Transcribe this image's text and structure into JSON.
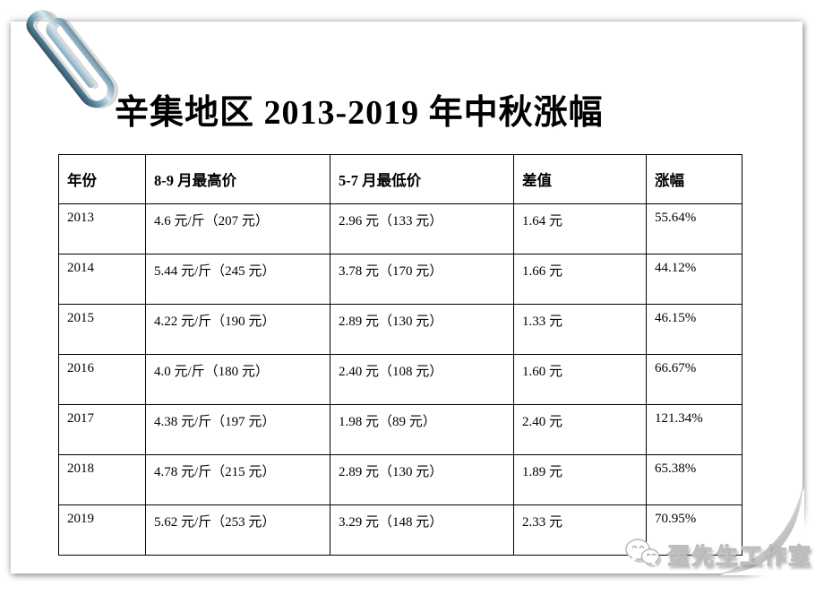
{
  "title": {
    "text": "辛集地区 2013-2019 年中秋涨幅"
  },
  "table": {
    "columns": [
      "年份",
      "8-9 月最高价",
      "5-7 月最低价",
      "差值",
      "涨幅"
    ],
    "rows": [
      [
        "2013",
        "4.6 元/斤（207 元）",
        "2.96 元（133 元）",
        "1.64 元",
        "55.64%"
      ],
      [
        "2014",
        "5.44 元/斤（245 元）",
        "3.78 元（170 元）",
        "1.66 元",
        "44.12%"
      ],
      [
        "2015",
        "4.22 元/斤（190 元）",
        "2.89 元（130 元）",
        "1.33 元",
        "46.15%"
      ],
      [
        "2016",
        "4.0 元/斤（180 元）",
        "2.40 元（108 元）",
        "1.60 元",
        "66.67%"
      ],
      [
        "2017",
        "4.38 元/斤（197 元）",
        "1.98 元（89 元）",
        "2.40 元",
        "121.34%"
      ],
      [
        "2018",
        "4.78 元/斤（215 元）",
        "2.89 元（130 元）",
        "1.89 元",
        "65.38%"
      ],
      [
        "2019",
        "5.62 元/斤（253 元）",
        "3.29 元（148 元）",
        "2.33 元",
        "70.95%"
      ]
    ]
  },
  "watermark": {
    "text": "蛋先生工作室"
  },
  "icons": {
    "paperclip": "paperclip-icon",
    "wechat": "wechat-icon",
    "page_curl": "page-curl"
  },
  "colors": {
    "paperclip_dark": "#2a4c60",
    "paperclip_light": "#cfe4ee",
    "table_border": "#000000",
    "watermark_outline": "#bdbdbd",
    "page_background": "#ffffff"
  }
}
